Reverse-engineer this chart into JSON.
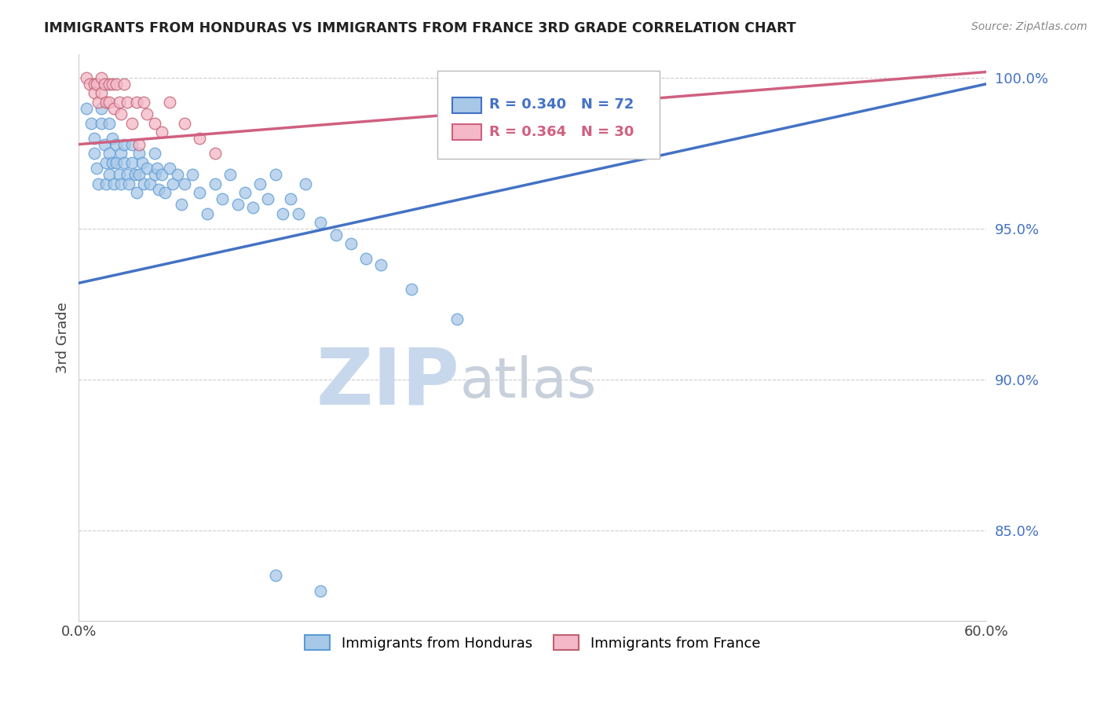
{
  "title": "IMMIGRANTS FROM HONDURAS VS IMMIGRANTS FROM FRANCE 3RD GRADE CORRELATION CHART",
  "source": "Source: ZipAtlas.com",
  "ylabel_label": "3rd Grade",
  "x_min": 0.0,
  "x_max": 0.6,
  "y_min": 0.82,
  "y_max": 1.008,
  "x_ticks": [
    0.0,
    0.1,
    0.2,
    0.3,
    0.4,
    0.5,
    0.6
  ],
  "x_tick_labels": [
    "0.0%",
    "",
    "",
    "",
    "",
    "",
    "60.0%"
  ],
  "y_ticks": [
    0.85,
    0.9,
    0.95,
    1.0
  ],
  "y_tick_labels": [
    "85.0%",
    "90.0%",
    "95.0%",
    "100.0%"
  ],
  "legend_labels": [
    "Immigrants from Honduras",
    "Immigrants from France"
  ],
  "r_blue": 0.34,
  "n_blue": 72,
  "r_pink": 0.364,
  "n_pink": 30,
  "scatter_blue_color": "#a8c8e8",
  "scatter_pink_color": "#f4b8c8",
  "trendline_blue": "#4472c4",
  "trendline_pink": "#d06080",
  "blue_edge": "#5b9bd5",
  "pink_edge": "#c06070",
  "watermark_zip": "ZIP",
  "watermark_atlas": "atlas",
  "watermark_color_zip": "#c8d8ec",
  "watermark_color_atlas": "#c8d0dc",
  "honduras_x": [
    0.005,
    0.008,
    0.01,
    0.01,
    0.012,
    0.013,
    0.015,
    0.015,
    0.017,
    0.018,
    0.018,
    0.02,
    0.02,
    0.02,
    0.022,
    0.022,
    0.023,
    0.025,
    0.025,
    0.027,
    0.028,
    0.028,
    0.03,
    0.03,
    0.032,
    0.033,
    0.035,
    0.035,
    0.037,
    0.038,
    0.04,
    0.04,
    0.042,
    0.043,
    0.045,
    0.047,
    0.05,
    0.05,
    0.052,
    0.053,
    0.055,
    0.057,
    0.06,
    0.062,
    0.065,
    0.068,
    0.07,
    0.075,
    0.08,
    0.085,
    0.09,
    0.095,
    0.1,
    0.105,
    0.11,
    0.115,
    0.12,
    0.125,
    0.13,
    0.135,
    0.14,
    0.145,
    0.15,
    0.16,
    0.17,
    0.18,
    0.19,
    0.2,
    0.22,
    0.25,
    0.13,
    0.16
  ],
  "honduras_y": [
    0.99,
    0.985,
    0.975,
    0.98,
    0.97,
    0.965,
    0.985,
    0.99,
    0.978,
    0.972,
    0.965,
    0.985,
    0.975,
    0.968,
    0.98,
    0.972,
    0.965,
    0.978,
    0.972,
    0.968,
    0.975,
    0.965,
    0.978,
    0.972,
    0.968,
    0.965,
    0.978,
    0.972,
    0.968,
    0.962,
    0.975,
    0.968,
    0.972,
    0.965,
    0.97,
    0.965,
    0.975,
    0.968,
    0.97,
    0.963,
    0.968,
    0.962,
    0.97,
    0.965,
    0.968,
    0.958,
    0.965,
    0.968,
    0.962,
    0.955,
    0.965,
    0.96,
    0.968,
    0.958,
    0.962,
    0.957,
    0.965,
    0.96,
    0.968,
    0.955,
    0.96,
    0.955,
    0.965,
    0.952,
    0.948,
    0.945,
    0.94,
    0.938,
    0.93,
    0.92,
    0.835,
    0.83
  ],
  "france_x": [
    0.005,
    0.007,
    0.01,
    0.01,
    0.012,
    0.013,
    0.015,
    0.015,
    0.017,
    0.018,
    0.02,
    0.02,
    0.022,
    0.023,
    0.025,
    0.027,
    0.028,
    0.03,
    0.032,
    0.035,
    0.038,
    0.04,
    0.043,
    0.045,
    0.05,
    0.055,
    0.06,
    0.07,
    0.08,
    0.09
  ],
  "france_y": [
    1.0,
    0.998,
    0.998,
    0.995,
    0.998,
    0.992,
    1.0,
    0.995,
    0.998,
    0.992,
    0.998,
    0.992,
    0.998,
    0.99,
    0.998,
    0.992,
    0.988,
    0.998,
    0.992,
    0.985,
    0.992,
    0.978,
    0.992,
    0.988,
    0.985,
    0.982,
    0.992,
    0.985,
    0.98,
    0.975
  ],
  "blue_trend_x": [
    0.0,
    0.6
  ],
  "blue_trend_y": [
    0.932,
    0.998
  ],
  "pink_trend_x": [
    0.0,
    0.6
  ],
  "pink_trend_y": [
    0.978,
    1.002
  ]
}
